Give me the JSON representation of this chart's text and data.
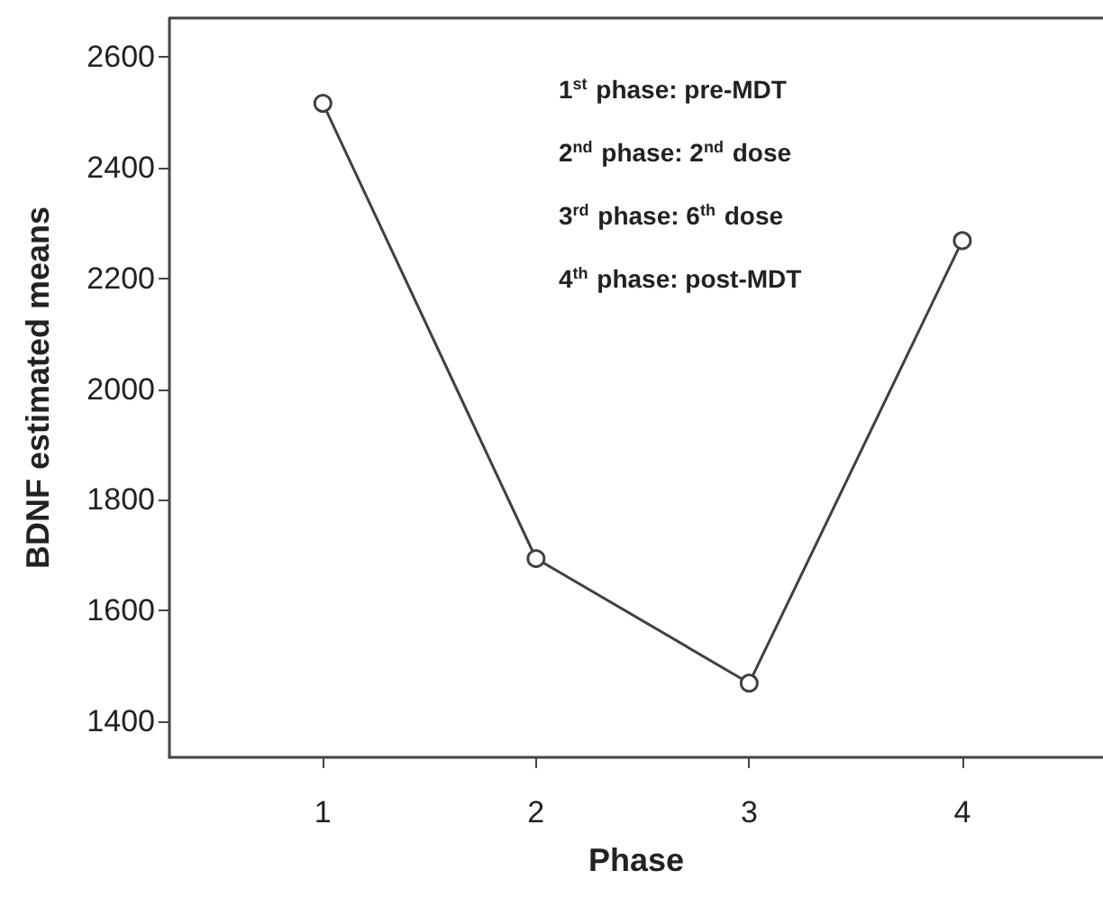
{
  "chart_data": {
    "type": "line",
    "xlabel": "Phase",
    "ylabel": "BDNF estimated means",
    "x": [
      1,
      2,
      3,
      4
    ],
    "series": [
      {
        "color": "#404040",
        "values": [
          2516,
          1694,
          1469,
          2268
        ]
      }
    ],
    "xlim": [
      0.28,
      4.66
    ],
    "xticks": [
      1,
      2,
      3,
      4
    ],
    "ylim": [
      1335,
      2670
    ],
    "yticks": [
      1400,
      1600,
      1800,
      2000,
      2200,
      2400,
      2600
    ],
    "marker": "circle",
    "line_style": "solid",
    "grid": false,
    "annotations": [
      "1$^{st}$ phase: pre-MDT",
      "2$^{nd}$ phase: 2$^{nd}$ dose",
      "3$^{rd}$ phase: 6$^{th}$ dose",
      "4$^{th}$ phase: post-MDT"
    ]
  }
}
